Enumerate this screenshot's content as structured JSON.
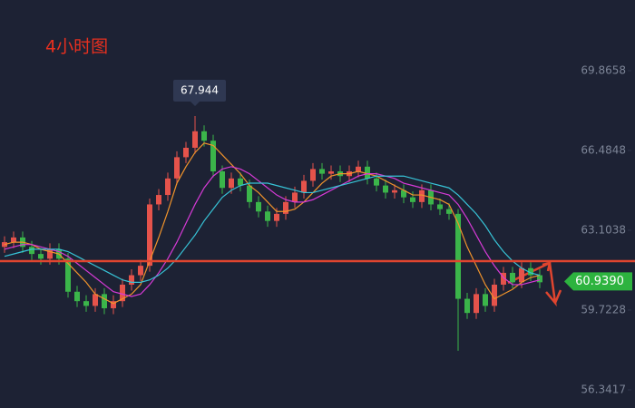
{
  "chart_data": {
    "type": "candlestick",
    "title": "4小时图",
    "up_color": "#e5534b",
    "down_color": "#3bb54a",
    "ylim": [
      55.573,
      72.862
    ],
    "yticks": [
      69.8658,
      66.4848,
      63.1038,
      59.7228,
      56.3417
    ],
    "open": [
      62.4,
      62.6,
      62.8,
      62.4,
      62.1,
      61.9,
      62.3,
      61.9,
      60.5,
      60.1,
      59.9,
      60.4,
      59.8,
      60.1,
      60.8,
      61.2,
      61.6,
      64.2,
      64.6,
      65.3,
      66.2,
      66.6,
      67.3,
      66.9,
      65.6,
      64.9,
      65.3,
      65.0,
      64.3,
      63.9,
      63.5,
      63.8,
      64.3,
      64.7,
      65.2,
      65.7,
      65.5,
      65.6,
      65.4,
      65.6,
      65.8,
      65.3,
      65.0,
      64.7,
      64.8,
      64.5,
      64.3,
      64.8,
      64.2,
      64.0,
      63.8,
      60.2,
      59.6,
      60.4,
      59.9,
      60.8,
      61.3,
      60.9,
      61.5,
      61.2
    ],
    "high": [
      62.85,
      63.05,
      63.05,
      62.65,
      62.35,
      62.55,
      62.55,
      62.15,
      60.75,
      60.35,
      60.65,
      60.65,
      60.35,
      61.05,
      61.45,
      61.85,
      64.45,
      64.85,
      65.55,
      66.45,
      66.85,
      67.944,
      67.55,
      67.15,
      65.85,
      65.55,
      65.55,
      65.25,
      64.55,
      64.15,
      64.05,
      64.55,
      64.95,
      65.45,
      65.95,
      65.95,
      65.85,
      65.85,
      65.85,
      66.05,
      66.05,
      65.55,
      65.25,
      65.05,
      65.05,
      64.75,
      65.05,
      65.05,
      64.45,
      64.25,
      64.0,
      60.45,
      60.65,
      60.65,
      61.05,
      61.55,
      61.55,
      61.75,
      61.75,
      61.45
    ],
    "low": [
      62.15,
      62.35,
      62.15,
      61.85,
      61.65,
      61.65,
      61.65,
      60.25,
      59.85,
      59.65,
      59.65,
      59.55,
      59.55,
      59.85,
      60.55,
      60.95,
      61.35,
      63.95,
      64.35,
      65.05,
      65.95,
      66.35,
      66.65,
      65.35,
      64.65,
      64.65,
      64.75,
      64.05,
      63.65,
      63.25,
      63.25,
      63.55,
      64.05,
      64.45,
      64.95,
      65.25,
      65.25,
      65.15,
      65.15,
      65.35,
      65.05,
      64.75,
      64.45,
      64.45,
      64.25,
      64.05,
      64.05,
      63.95,
      63.75,
      63.55,
      58.0,
      59.35,
      59.35,
      59.65,
      59.65,
      60.55,
      60.65,
      60.65,
      60.95,
      60.65
    ],
    "close": [
      62.6,
      62.8,
      62.4,
      62.1,
      61.9,
      62.3,
      61.9,
      60.5,
      60.1,
      59.9,
      60.4,
      59.8,
      60.1,
      60.8,
      61.2,
      61.6,
      64.2,
      64.6,
      65.3,
      66.2,
      66.6,
      67.3,
      66.9,
      65.6,
      64.9,
      65.3,
      65.0,
      64.3,
      63.9,
      63.5,
      63.8,
      64.3,
      64.7,
      65.2,
      65.7,
      65.5,
      65.6,
      65.4,
      65.6,
      65.8,
      65.3,
      65.0,
      64.7,
      64.8,
      64.5,
      64.3,
      64.8,
      64.2,
      64.0,
      63.8,
      60.2,
      59.6,
      60.4,
      59.9,
      60.8,
      61.3,
      60.9,
      61.5,
      61.2,
      60.9
    ],
    "lines": [
      {
        "color": "#f0932b",
        "values": [
          62.5,
          62.6,
          62.6,
          62.5,
          62.3,
          62.2,
          62.1,
          61.7,
          61.3,
          60.9,
          60.4,
          60.2,
          60.0,
          60.2,
          60.4,
          60.8,
          61.8,
          62.8,
          63.9,
          65.1,
          65.8,
          66.4,
          66.8,
          66.7,
          66.3,
          65.9,
          65.5,
          65.0,
          64.7,
          64.3,
          63.9,
          63.9,
          64.0,
          64.3,
          64.7,
          65.1,
          65.4,
          65.5,
          65.5,
          65.6,
          65.5,
          65.4,
          65.2,
          65.0,
          64.8,
          64.6,
          64.6,
          64.5,
          64.4,
          64.2,
          63.4,
          62.4,
          61.6,
          60.8,
          60.2,
          60.4,
          60.6,
          60.9,
          61.1,
          61.2
        ]
      },
      {
        "color": "#d63ad6",
        "values": [
          62.3,
          62.4,
          62.5,
          62.5,
          62.4,
          62.3,
          62.2,
          62.0,
          61.7,
          61.4,
          61.1,
          60.8,
          60.5,
          60.4,
          60.3,
          60.4,
          60.8,
          61.3,
          61.9,
          62.6,
          63.4,
          64.2,
          64.9,
          65.4,
          65.7,
          65.8,
          65.7,
          65.5,
          65.2,
          64.9,
          64.6,
          64.4,
          64.3,
          64.3,
          64.4,
          64.6,
          64.8,
          65.0,
          65.2,
          65.4,
          65.5,
          65.5,
          65.4,
          65.3,
          65.1,
          65.0,
          64.9,
          64.8,
          64.7,
          64.6,
          64.2,
          63.6,
          62.9,
          62.2,
          61.6,
          61.1,
          60.8,
          60.8,
          60.9,
          61.0
        ]
      },
      {
        "color": "#37c3d6",
        "values": [
          62.0,
          62.1,
          62.2,
          62.3,
          62.3,
          62.3,
          62.3,
          62.2,
          62.0,
          61.8,
          61.6,
          61.4,
          61.2,
          61.0,
          60.9,
          60.9,
          61.0,
          61.2,
          61.5,
          61.9,
          62.4,
          62.9,
          63.5,
          64.0,
          64.5,
          64.8,
          65.0,
          65.1,
          65.1,
          65.1,
          65.0,
          64.9,
          64.8,
          64.7,
          64.7,
          64.8,
          64.9,
          65.0,
          65.1,
          65.2,
          65.3,
          65.4,
          65.4,
          65.4,
          65.4,
          65.3,
          65.2,
          65.1,
          65.0,
          64.9,
          64.6,
          64.2,
          63.8,
          63.3,
          62.7,
          62.2,
          61.8,
          61.5,
          61.3,
          61.2
        ]
      }
    ],
    "hline": {
      "value": 61.798,
      "color": "#e0452f"
    },
    "last_price": {
      "value": 60.939,
      "label": "60.9390"
    }
  }
}
